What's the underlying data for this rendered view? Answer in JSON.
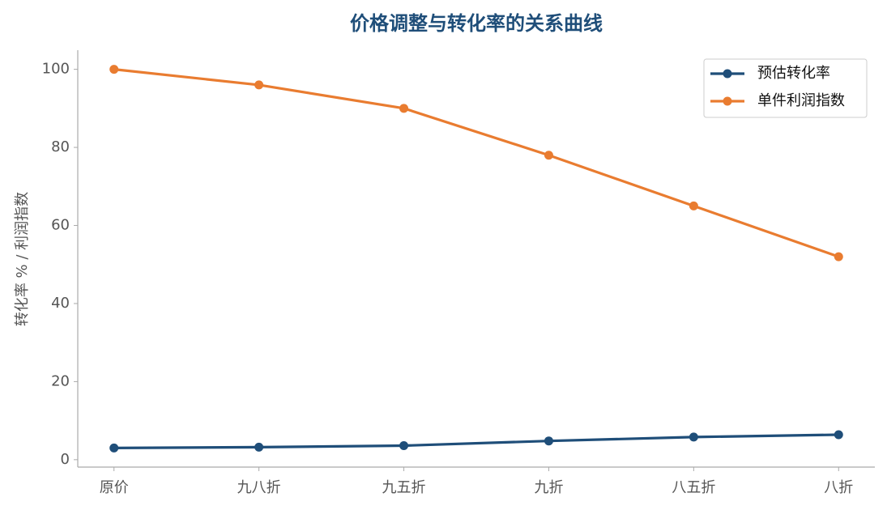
{
  "chart_data": {
    "type": "line",
    "title": "价格调整与转化率的关系曲线",
    "y_label": "转化率 % / 利润指数",
    "categories": [
      "原价",
      "九八折",
      "九五折",
      "九折",
      "八五折",
      "八折"
    ],
    "series": [
      {
        "name": "预估转化率",
        "color": "#1f4e79",
        "values": [
          3.0,
          3.2,
          3.6,
          4.8,
          5.8,
          6.4
        ]
      },
      {
        "name": "单件利润指数",
        "color": "#e97c30",
        "values": [
          100,
          96,
          90,
          78,
          65,
          52
        ]
      }
    ],
    "ylim": [
      -1.9,
      104.9
    ],
    "yticks": [
      0,
      20,
      40,
      60,
      80,
      100
    ],
    "legend": "upper-right"
  }
}
